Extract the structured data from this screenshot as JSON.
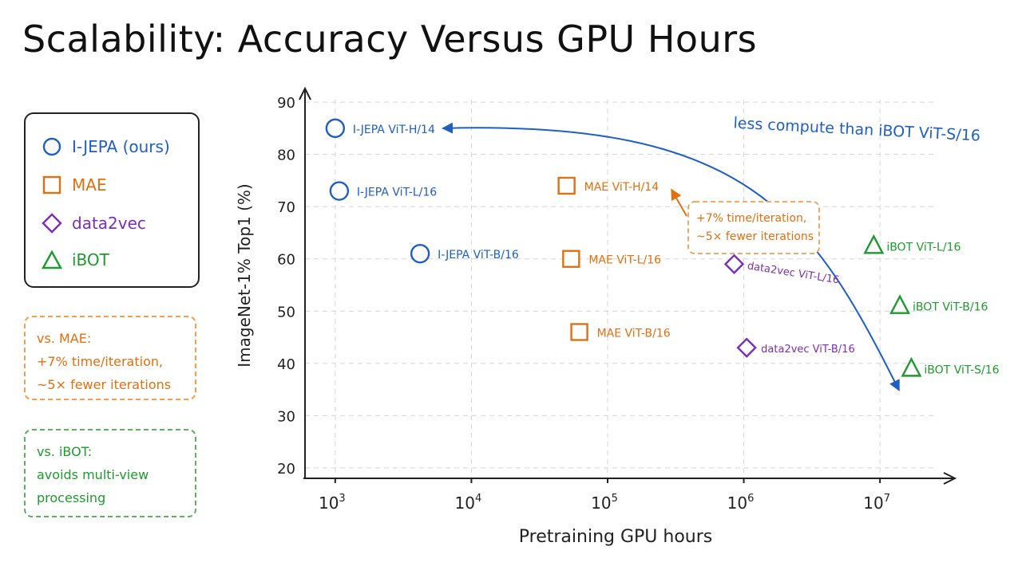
{
  "title": "Scalability: Accuracy Versus GPU Hours",
  "legend": {
    "items": [
      {
        "label": "I-JEPA (ours)",
        "shape": "circle",
        "color": "#1f5fc4"
      },
      {
        "label": "MAE",
        "shape": "square",
        "color": "#e07010"
      },
      {
        "label": "data2vec",
        "shape": "diamond",
        "color": "#7b2fb5"
      },
      {
        "label": "iBOT",
        "shape": "triangle",
        "color": "#1f9a2f"
      }
    ]
  },
  "notes": {
    "mae": {
      "lines": [
        "vs. MAE:",
        "+7% time/iteration,",
        "~5× fewer iterations"
      ]
    },
    "ibot": {
      "lines": [
        "vs. iBOT:",
        "avoids multi-view",
        "processing"
      ]
    }
  },
  "chart_data": {
    "type": "scatter",
    "x_scale": "log",
    "xlabel": "Pretraining GPU hours",
    "ylabel": "ImageNet-1% Top1 (%)",
    "xlim": [
      600,
      25000000
    ],
    "ylim": [
      18,
      92
    ],
    "y_ticks": [
      20,
      30,
      40,
      50,
      60,
      70,
      80,
      90
    ],
    "x_ticks": [
      {
        "value": 1000,
        "base": "10",
        "exp": "3"
      },
      {
        "value": 10000,
        "base": "10",
        "exp": "4"
      },
      {
        "value": 100000,
        "base": "10",
        "exp": "5"
      },
      {
        "value": 1000000,
        "base": "10",
        "exp": "6"
      },
      {
        "value": 10000000,
        "base": "10",
        "exp": "7"
      }
    ],
    "grid": true,
    "series": [
      {
        "name": "I-JEPA (ours)",
        "shape": "circle",
        "color": "#1f5fc4",
        "points": [
          {
            "label": "I-JEPA ViT-H/14",
            "x": 1000,
            "y": 85
          },
          {
            "label": "I-JEPA ViT-L/16",
            "x": 1070,
            "y": 73
          },
          {
            "label": "I-JEPA ViT-B/16",
            "x": 4200,
            "y": 61
          }
        ]
      },
      {
        "name": "MAE",
        "shape": "square",
        "color": "#e07010",
        "points": [
          {
            "label": "MAE ViT-H/14",
            "x": 50000,
            "y": 74
          },
          {
            "label": "MAE ViT-L/16",
            "x": 54000,
            "y": 60
          },
          {
            "label": "MAE ViT-B/16",
            "x": 62000,
            "y": 46
          }
        ]
      },
      {
        "name": "data2vec",
        "shape": "diamond",
        "color": "#7b2fb5",
        "points": [
          {
            "label": "data2vec ViT-L/16",
            "x": 850000,
            "y": 59
          },
          {
            "label": "data2vec ViT-B/16",
            "x": 1050000,
            "y": 43
          }
        ]
      },
      {
        "name": "iBOT",
        "shape": "triangle",
        "color": "#1f9a2f",
        "points": [
          {
            "label": "iBOT ViT-L/16",
            "x": 9000000,
            "y": 62.5
          },
          {
            "label": "iBOT ViT-B/16",
            "x": 14000000,
            "y": 51
          },
          {
            "label": "iBOT ViT-S/16",
            "x": 17000000,
            "y": 39
          }
        ]
      }
    ],
    "annotations": [
      {
        "text": "less compute than iBOT ViT-S/16",
        "color": "#1f5fc4"
      },
      {
        "lines": [
          "+7% time/iteration,",
          "~5× fewer iterations"
        ],
        "color": "#e07010"
      }
    ]
  }
}
